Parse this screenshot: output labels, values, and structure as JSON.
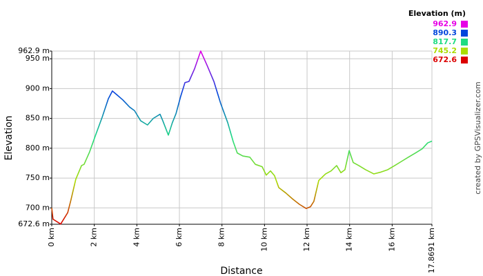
{
  "chart_data": {
    "type": "line",
    "xlabel": "Distance",
    "ylabel": "Elevation",
    "credit": "created by GPSVisualizer.com",
    "legend_title": "Elevation (m)",
    "legend": [
      {
        "value": 962.9,
        "color": "#e600e6"
      },
      {
        "value": 890.3,
        "color": "#0046dc"
      },
      {
        "value": 817.7,
        "color": "#1edc82"
      },
      {
        "value": 745.2,
        "color": "#aadc00"
      },
      {
        "value": 672.6,
        "color": "#dc0000"
      }
    ],
    "grid": true,
    "xlim": [
      0,
      17.8691
    ],
    "ylim": [
      672.6,
      962.9
    ],
    "xticks": [
      {
        "value": 0,
        "label": "0 km"
      },
      {
        "value": 2,
        "label": "2 km"
      },
      {
        "value": 4,
        "label": "4 km"
      },
      {
        "value": 6,
        "label": "6 km"
      },
      {
        "value": 8,
        "label": "8 km"
      },
      {
        "value": 10,
        "label": "10 km"
      },
      {
        "value": 12,
        "label": "12 km"
      },
      {
        "value": 14,
        "label": "14 km"
      },
      {
        "value": 16,
        "label": "16 km"
      },
      {
        "value": 17.8691,
        "label": "17.8691 km"
      }
    ],
    "yticks": [
      {
        "value": 672.6,
        "label": "672.6 m"
      },
      {
        "value": 700,
        "label": "700 m"
      },
      {
        "value": 750,
        "label": "750 m"
      },
      {
        "value": 800,
        "label": "800 m"
      },
      {
        "value": 850,
        "label": "850 m"
      },
      {
        "value": 900,
        "label": "900 m"
      },
      {
        "value": 950,
        "label": "950 m"
      },
      {
        "value": 962.9,
        "label": "962.9 m"
      }
    ],
    "x": [
      0,
      0.06,
      0.42,
      0.75,
      0.9,
      1.13,
      1.4,
      1.52,
      1.78,
      2.04,
      2.37,
      2.66,
      2.85,
      3.08,
      3.34,
      3.66,
      3.89,
      4.18,
      4.5,
      4.77,
      5.09,
      5.22,
      5.48,
      5.67,
      5.84,
      6.06,
      6.26,
      6.45,
      6.71,
      7.0,
      7.3,
      7.62,
      7.94,
      8.27,
      8.53,
      8.72,
      8.98,
      9.31,
      9.57,
      9.89,
      10.08,
      10.28,
      10.47,
      10.67,
      11.0,
      11.32,
      11.64,
      11.96,
      12.16,
      12.32,
      12.55,
      12.87,
      13.13,
      13.39,
      13.59,
      13.78,
      13.98,
      14.17,
      14.43,
      14.75,
      15.14,
      15.47,
      15.79,
      16.12,
      16.44,
      16.76,
      17.09,
      17.41,
      17.67,
      17.87
    ],
    "values": [
      700,
      681,
      673,
      692,
      713,
      748,
      771,
      773,
      794,
      820,
      852,
      883,
      896,
      889,
      881,
      869,
      863,
      846,
      839,
      850,
      857,
      846,
      822,
      843,
      858,
      887,
      910,
      912,
      933,
      962.9,
      939,
      912,
      875,
      843,
      811,
      792,
      787,
      785,
      773,
      769,
      755,
      762,
      754,
      734,
      725,
      715,
      706,
      699,
      702,
      711,
      746,
      757,
      762,
      771,
      759,
      764,
      796,
      776,
      771,
      764,
      757,
      760,
      764,
      771,
      778,
      785,
      792,
      799,
      809,
      812
    ]
  }
}
